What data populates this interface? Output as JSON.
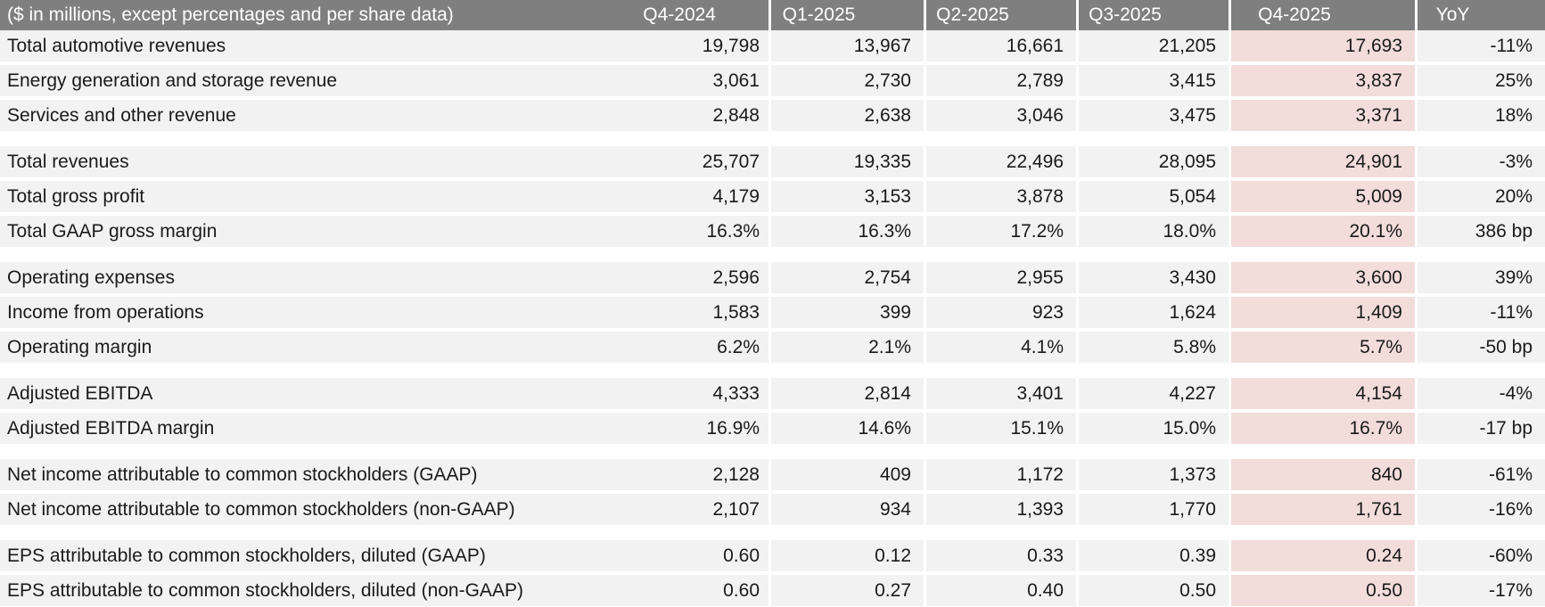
{
  "table": {
    "header": {
      "label": "($ in millions, except percentages and per share data)",
      "columns": [
        "Q4-2024",
        "Q1-2025",
        "Q2-2025",
        "Q3-2025",
        "Q4-2025",
        "YoY"
      ]
    },
    "rows": [
      {
        "label": "Total automotive revenues",
        "values": [
          "19,798",
          "13,967",
          "16,661",
          "21,205",
          "17,693",
          "-11%"
        ]
      },
      {
        "label": "Energy generation and storage revenue",
        "values": [
          "3,061",
          "2,730",
          "2,789",
          "3,415",
          "3,837",
          "25%"
        ]
      },
      {
        "label": "Services and other revenue",
        "values": [
          "2,848",
          "2,638",
          "3,046",
          "3,475",
          "3,371",
          "18%"
        ]
      },
      {
        "label": "Total revenues",
        "values": [
          "25,707",
          "19,335",
          "22,496",
          "28,095",
          "24,901",
          "-3%"
        ]
      },
      {
        "label": "Total gross profit",
        "values": [
          "4,179",
          "3,153",
          "3,878",
          "5,054",
          "5,009",
          "20%"
        ]
      },
      {
        "label": "Total GAAP gross margin",
        "values": [
          "16.3%",
          "16.3%",
          "17.2%",
          "18.0%",
          "20.1%",
          "386 bp"
        ]
      },
      {
        "label": "Operating expenses",
        "values": [
          "2,596",
          "2,754",
          "2,955",
          "3,430",
          "3,600",
          "39%"
        ]
      },
      {
        "label": "Income from operations",
        "values": [
          "1,583",
          "399",
          "923",
          "1,624",
          "1,409",
          "-11%"
        ]
      },
      {
        "label": "Operating margin",
        "values": [
          "6.2%",
          "2.1%",
          "4.1%",
          "5.8%",
          "5.7%",
          "-50 bp"
        ]
      },
      {
        "label": "Adjusted EBITDA",
        "values": [
          "4,333",
          "2,814",
          "3,401",
          "4,227",
          "4,154",
          "-4%"
        ]
      },
      {
        "label": "Adjusted EBITDA margin",
        "values": [
          "16.9%",
          "14.6%",
          "15.1%",
          "15.0%",
          "16.7%",
          "-17 bp"
        ]
      },
      {
        "label": "Net income attributable to common stockholders (GAAP)",
        "values": [
          "2,128",
          "409",
          "1,172",
          "1,373",
          "840",
          "-61%"
        ]
      },
      {
        "label": "Net income attributable to common stockholders (non-GAAP)",
        "values": [
          "2,107",
          "934",
          "1,393",
          "1,770",
          "1,761",
          "-16%"
        ]
      },
      {
        "label": "EPS attributable to common stockholders, diluted (GAAP)",
        "values": [
          "0.60",
          "0.12",
          "0.33",
          "0.39",
          "0.24",
          "-60%"
        ]
      },
      {
        "label": "EPS attributable to common stockholders, diluted (non-GAAP)",
        "values": [
          "0.60",
          "0.27",
          "0.40",
          "0.50",
          "0.50",
          "-17%"
        ]
      }
    ],
    "row_groups": [
      [
        0,
        1,
        2
      ],
      [
        3,
        4,
        5
      ],
      [
        6,
        7,
        8
      ],
      [
        9,
        10
      ],
      [
        11,
        12
      ],
      [
        13,
        14
      ]
    ]
  },
  "chart_data": {
    "type": "table",
    "title": "($ in millions, except percentages and per share data)",
    "columns": [
      "Q4-2024",
      "Q1-2025",
      "Q2-2025",
      "Q3-2025",
      "Q4-2025",
      "YoY"
    ],
    "highlighted_column": "Q4-2025",
    "rows": [
      {
        "label": "Total automotive revenues",
        "values": [
          19798,
          13967,
          16661,
          21205,
          17693
        ],
        "yoy": "-11%"
      },
      {
        "label": "Energy generation and storage revenue",
        "values": [
          3061,
          2730,
          2789,
          3415,
          3837
        ],
        "yoy": "25%"
      },
      {
        "label": "Services and other revenue",
        "values": [
          2848,
          2638,
          3046,
          3475,
          3371
        ],
        "yoy": "18%"
      },
      {
        "label": "Total revenues",
        "values": [
          25707,
          19335,
          22496,
          28095,
          24901
        ],
        "yoy": "-3%"
      },
      {
        "label": "Total gross profit",
        "values": [
          4179,
          3153,
          3878,
          5054,
          5009
        ],
        "yoy": "20%"
      },
      {
        "label": "Total GAAP gross margin",
        "values": [
          "16.3%",
          "16.3%",
          "17.2%",
          "18.0%",
          "20.1%"
        ],
        "yoy": "386 bp"
      },
      {
        "label": "Operating expenses",
        "values": [
          2596,
          2754,
          2955,
          3430,
          3600
        ],
        "yoy": "39%"
      },
      {
        "label": "Income from operations",
        "values": [
          1583,
          399,
          923,
          1624,
          1409
        ],
        "yoy": "-11%"
      },
      {
        "label": "Operating margin",
        "values": [
          "6.2%",
          "2.1%",
          "4.1%",
          "5.8%",
          "5.7%"
        ],
        "yoy": "-50 bp"
      },
      {
        "label": "Adjusted EBITDA",
        "values": [
          4333,
          2814,
          3401,
          4227,
          4154
        ],
        "yoy": "-4%"
      },
      {
        "label": "Adjusted EBITDA margin",
        "values": [
          "16.9%",
          "14.6%",
          "15.1%",
          "15.0%",
          "16.7%"
        ],
        "yoy": "-17 bp"
      },
      {
        "label": "Net income attributable to common stockholders (GAAP)",
        "values": [
          2128,
          409,
          1172,
          1373,
          840
        ],
        "yoy": "-61%"
      },
      {
        "label": "Net income attributable to common stockholders (non-GAAP)",
        "values": [
          2107,
          934,
          1393,
          1770,
          1761
        ],
        "yoy": "-16%"
      },
      {
        "label": "EPS attributable to common stockholders, diluted (GAAP)",
        "values": [
          0.6,
          0.12,
          0.33,
          0.39,
          0.24
        ],
        "yoy": "-60%"
      },
      {
        "label": "EPS attributable to common stockholders, diluted (non-GAAP)",
        "values": [
          0.6,
          0.27,
          0.4,
          0.5,
          0.5
        ],
        "yoy": "-17%"
      }
    ]
  },
  "colors": {
    "header_bg": "#7f7f7f",
    "header_text": "#ffffff",
    "row_bg": "#f2f2f2",
    "highlight_bg": "#f2dddb",
    "body_text": "#1a1a1a",
    "separator": "#ffffff"
  }
}
